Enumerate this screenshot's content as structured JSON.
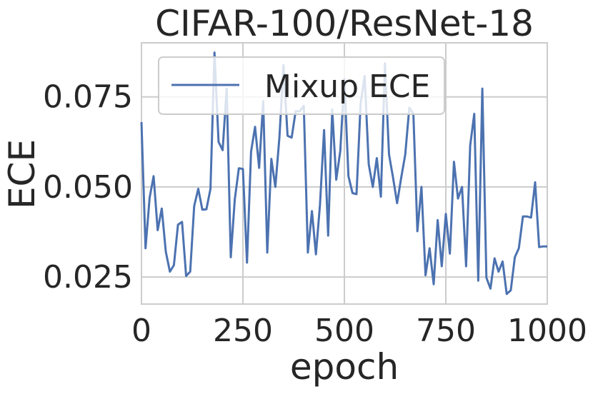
{
  "chart_data": {
    "type": "line",
    "title": "CIFAR-100/ResNet-18",
    "xlabel": "epoch",
    "ylabel": "ECE",
    "xlim": [
      0,
      1000
    ],
    "ylim": [
      0.0175,
      0.09
    ],
    "grid": true,
    "legend_placement": "top-left",
    "xticks": [
      0,
      250,
      500,
      750,
      1000
    ],
    "xtick_labels": [
      "0",
      "250",
      "500",
      "750",
      "1000"
    ],
    "yticks": [
      0.025,
      0.05,
      0.075
    ],
    "ytick_labels": [
      "0.025",
      "0.050",
      "0.075"
    ],
    "series": [
      {
        "name": "Mixup ECE",
        "color": "#4c72b0",
        "x": [
          0,
          10,
          20,
          30,
          40,
          50,
          60,
          70,
          80,
          90,
          100,
          110,
          120,
          130,
          140,
          150,
          160,
          170,
          180,
          190,
          200,
          210,
          220,
          230,
          240,
          250,
          260,
          270,
          280,
          290,
          300,
          310,
          320,
          330,
          340,
          350,
          360,
          370,
          380,
          390,
          400,
          410,
          420,
          430,
          440,
          450,
          460,
          470,
          480,
          490,
          500,
          510,
          520,
          530,
          540,
          550,
          560,
          570,
          580,
          590,
          600,
          610,
          620,
          630,
          640,
          650,
          660,
          670,
          680,
          690,
          700,
          710,
          720,
          730,
          740,
          750,
          760,
          770,
          780,
          790,
          800,
          810,
          820,
          830,
          840,
          850,
          860,
          870,
          880,
          890,
          900,
          910,
          920,
          930,
          940,
          950,
          960,
          970,
          980,
          990,
          1000
        ],
        "values": [
          0.068,
          0.033,
          0.047,
          0.053,
          0.038,
          0.044,
          0.032,
          0.0265,
          0.0283,
          0.0395,
          0.0403,
          0.0253,
          0.0265,
          0.0447,
          0.0495,
          0.0437,
          0.0438,
          0.0495,
          0.0873,
          0.0625,
          0.0602,
          0.0773,
          0.0305,
          0.0465,
          0.0552,
          0.055,
          0.029,
          0.0598,
          0.0667,
          0.0553,
          0.0738,
          0.0318,
          0.0578,
          0.05,
          0.0638,
          0.0838,
          0.0642,
          0.0637,
          0.071,
          0.071,
          0.0725,
          0.0318,
          0.0433,
          0.0313,
          0.0452,
          0.0658,
          0.0365,
          0.0715,
          0.052,
          0.06,
          0.08,
          0.053,
          0.0483,
          0.048,
          0.073,
          0.0808,
          0.0563,
          0.05,
          0.058,
          0.0473,
          0.0843,
          0.059,
          0.0525,
          0.0455,
          0.0525,
          0.059,
          0.072,
          0.0703,
          0.0377,
          0.05,
          0.0255,
          0.033,
          0.023,
          0.0408,
          0.028,
          0.0425,
          0.0315,
          0.057,
          0.0468,
          0.05,
          0.028,
          0.0615,
          0.0703,
          0.024,
          0.0773,
          0.0248,
          0.0218,
          0.0302,
          0.0265,
          0.0293,
          0.0203,
          0.0213,
          0.0305,
          0.033,
          0.0418,
          0.0418,
          0.0415,
          0.0513,
          0.0333,
          0.0335,
          0.0335
        ]
      }
    ]
  }
}
